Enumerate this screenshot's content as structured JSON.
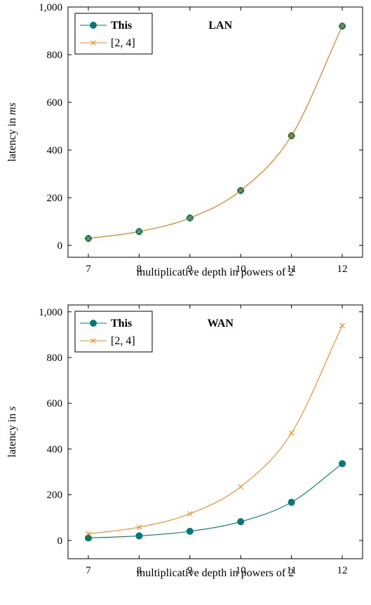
{
  "colors": {
    "this": "#007a78",
    "ref": "#f08c1a",
    "axis": "#000000"
  },
  "chart_data": [
    {
      "type": "line",
      "title": "LAN",
      "xlabel": "multiplicative depth in powers of 2",
      "ylabel_prefix": "latency in ",
      "ylabel_unit": "ms",
      "x": [
        7,
        8,
        9,
        10,
        11,
        12
      ],
      "xlim": [
        6.6,
        12.4
      ],
      "ylim": [
        -50,
        1000
      ],
      "yticks": [
        0,
        200,
        400,
        600,
        800,
        1000
      ],
      "ytick_labels": [
        "0",
        "200",
        "400",
        "600",
        "800",
        "1,000"
      ],
      "xtick_labels": [
        "7",
        "8",
        "9",
        "10",
        "11",
        "12"
      ],
      "legend_position": "top-left",
      "series": [
        {
          "name": "This",
          "marker": "circle",
          "values": [
            29,
            58,
            115,
            230,
            460,
            920
          ]
        },
        {
          "name": "[2, 4]",
          "marker": "x",
          "values": [
            29,
            58,
            115,
            230,
            460,
            920
          ]
        }
      ]
    },
    {
      "type": "line",
      "title": "WAN",
      "xlabel": "multiplicative depth in powers of 2",
      "ylabel_prefix": "latency in ",
      "ylabel_unit": "s",
      "x": [
        7,
        8,
        9,
        10,
        11,
        12
      ],
      "xlim": [
        6.6,
        12.4
      ],
      "ylim": [
        -80,
        1030
      ],
      "yticks": [
        0,
        200,
        400,
        600,
        800,
        1000
      ],
      "ytick_labels": [
        "0",
        "200",
        "400",
        "600",
        "800",
        "1,000"
      ],
      "xtick_labels": [
        "7",
        "8",
        "9",
        "10",
        "11",
        "12"
      ],
      "legend_position": "top-left",
      "series": [
        {
          "name": "This",
          "marker": "circle",
          "values": [
            11,
            20,
            40,
            82,
            167,
            336
          ]
        },
        {
          "name": "[2, 4]",
          "marker": "x",
          "values": [
            29,
            58,
            117,
            235,
            470,
            940
          ]
        }
      ]
    }
  ]
}
